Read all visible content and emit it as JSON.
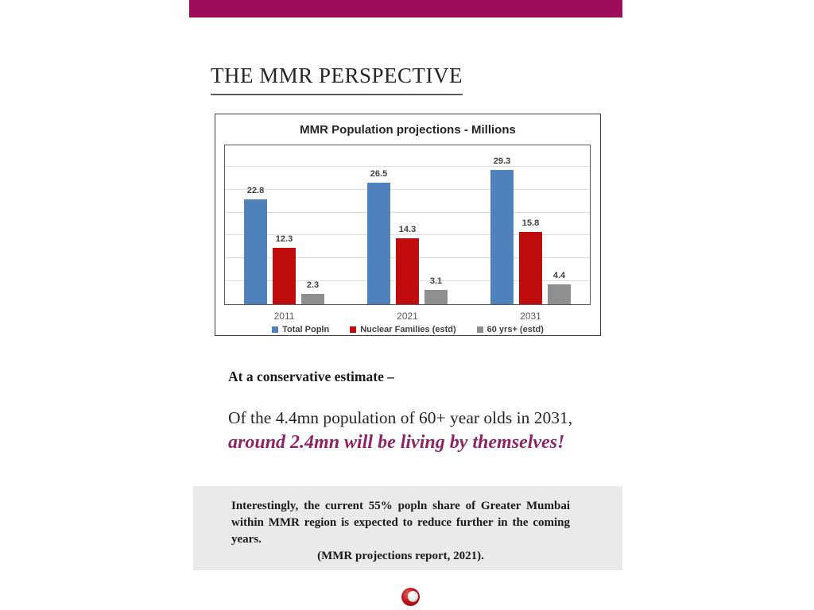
{
  "page": {
    "title": "THE MMR PERSPECTIVE",
    "accent_color": "#9E0D5C"
  },
  "chart_data": {
    "type": "bar",
    "title": "MMR Population projections - Millions",
    "categories": [
      "2011",
      "2021",
      "2031"
    ],
    "series": [
      {
        "name": "Total Popln",
        "color": "#4F81BD",
        "values": [
          22.8,
          26.5,
          29.3
        ]
      },
      {
        "name": "Nuclear Families (estd)",
        "color": "#C00C0C",
        "values": [
          12.3,
          14.3,
          15.8
        ]
      },
      {
        "name": "60 yrs+ (estd)",
        "color": "#8F8F8F",
        "values": [
          2.3,
          3.1,
          4.4
        ]
      }
    ],
    "xlabel": "",
    "ylabel": "",
    "ylim": [
      0,
      35
    ],
    "grid_step": 5,
    "grid": true,
    "legend_position": "bottom",
    "value_labels": true
  },
  "body": {
    "lead": "At a conservative estimate –",
    "line1": "Of the 4.4mn population of 60+ year olds in 2031,",
    "line2": "around 2.4mn will be living by themselves!",
    "highlight_color": "#8E2468"
  },
  "callout": {
    "lines": [
      "Interestingly, the current 55% popln share of Greater Mumbai",
      "within MMR region is expected to reduce further in the coming",
      "years.",
      "(MMR projections report, 2021)."
    ]
  },
  "footer": {
    "logo": "red-sphere-logo"
  }
}
